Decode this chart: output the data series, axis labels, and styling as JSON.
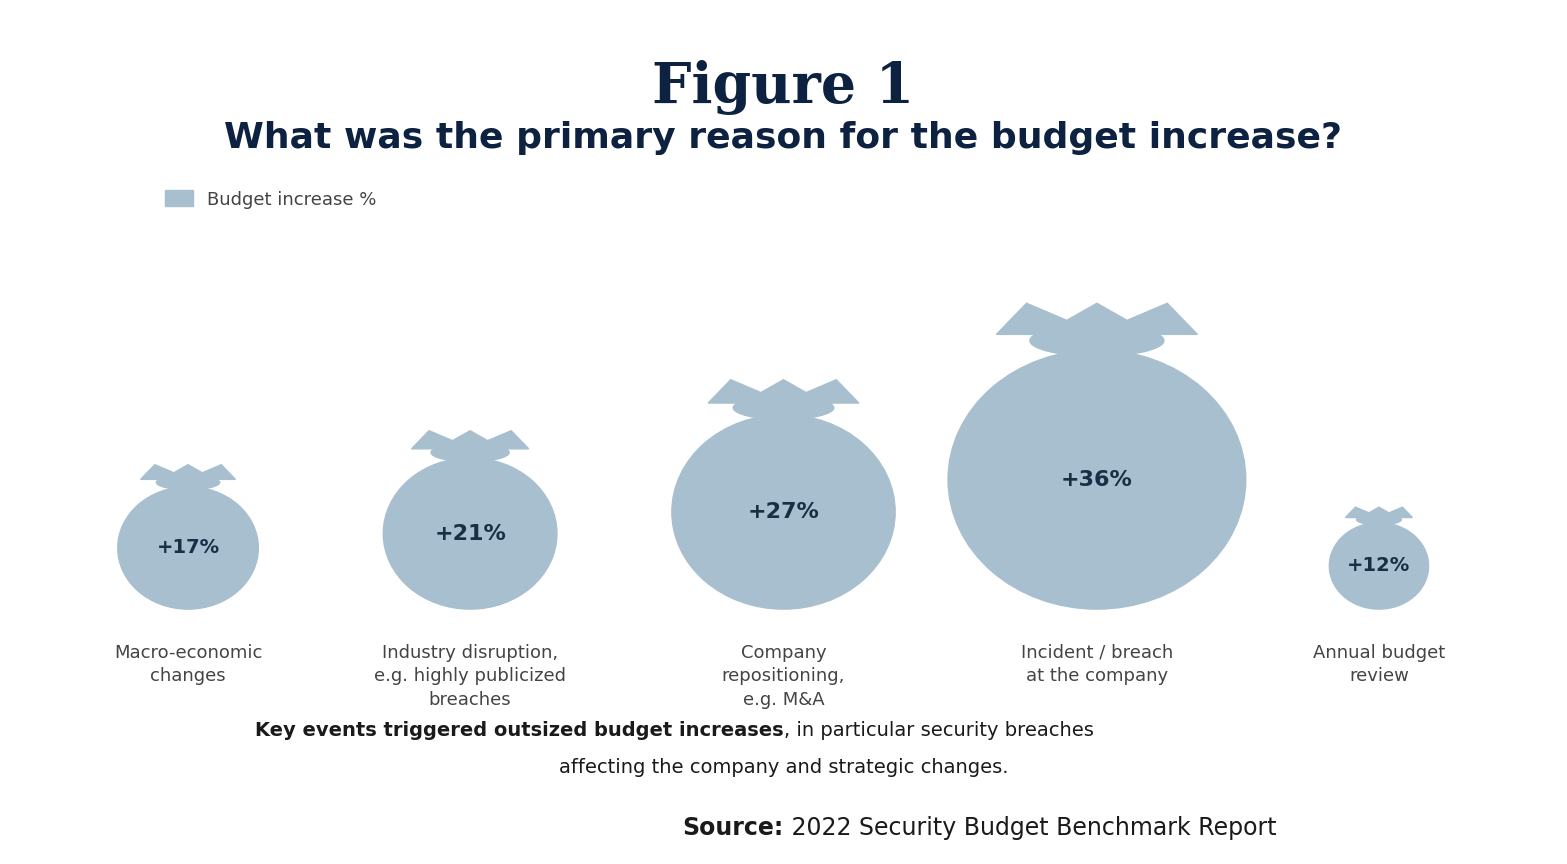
{
  "title_line1": "Figure 1",
  "title_line2": "What was the primary reason for the budget increase?",
  "categories": [
    "Macro-economic\nchanges",
    "Industry disruption,\ne.g. highly publicized\nbreaches",
    "Company\nrepositioning,\ne.g. M&A",
    "Incident / breach\nat the company",
    "Annual budget\nreview"
  ],
  "values": [
    17,
    21,
    27,
    36,
    12
  ],
  "labels": [
    "+17%",
    "+21%",
    "+27%",
    "+36%",
    "+12%"
  ],
  "bag_color": "#a8bfcf",
  "background_color": "#ffffff",
  "title_color": "#0d2240",
  "label_color": "#1a2e45",
  "category_color": "#444444",
  "legend_label": "Budget increase %",
  "footnote_bold": "Key events triggered outsized budget increases",
  "footnote_regular": ", in particular security breaches\naffecting the company and strategic changes.",
  "source_bold": "Source:",
  "source_regular": " 2022 Security Budget Benchmark Report",
  "x_positions": [
    0.12,
    0.3,
    0.5,
    0.7,
    0.88
  ],
  "bag_scale": [
    17,
    21,
    27,
    36,
    12
  ]
}
